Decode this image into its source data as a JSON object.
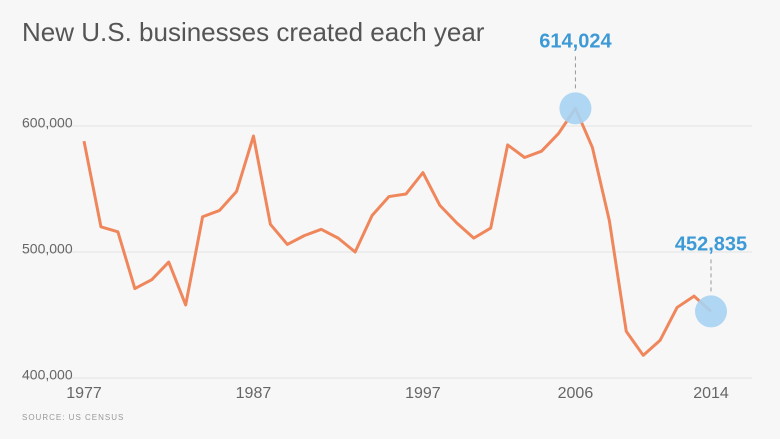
{
  "chart_data": {
    "type": "line",
    "title": "New U.S. businesses created each year",
    "source": "SOURCE: US CENSUS",
    "x": [
      1977,
      1978,
      1979,
      1980,
      1981,
      1982,
      1983,
      1984,
      1985,
      1986,
      1987,
      1988,
      1989,
      1990,
      1991,
      1992,
      1993,
      1994,
      1995,
      1996,
      1997,
      1998,
      1999,
      2000,
      2001,
      2002,
      2003,
      2004,
      2005,
      2006,
      2007,
      2008,
      2009,
      2010,
      2011,
      2012,
      2013,
      2014
    ],
    "series": [
      {
        "name": "New businesses",
        "color": "#f0875c",
        "values": [
          588000,
          520000,
          516000,
          471000,
          478000,
          492000,
          458000,
          528000,
          533000,
          548000,
          592000,
          522000,
          506000,
          513000,
          518000,
          511000,
          500000,
          529000,
          544000,
          546000,
          563000,
          537000,
          523000,
          511000,
          519000,
          585000,
          575000,
          580000,
          594000,
          614024,
          583000,
          525000,
          437000,
          418000,
          430000,
          456000,
          465000,
          452835
        ],
        "value_labels": [
          null,
          null,
          null,
          null,
          null,
          null,
          null,
          null,
          null,
          null,
          null,
          null,
          null,
          null,
          null,
          null,
          null,
          null,
          null,
          null,
          null,
          null,
          null,
          null,
          null,
          null,
          null,
          null,
          null,
          "614,024",
          null,
          null,
          null,
          null,
          null,
          null,
          null,
          "452,835"
        ]
      }
    ],
    "xlim": [
      1977,
      2014
    ],
    "xticks": [
      1977,
      1987,
      1997,
      2006,
      2014
    ],
    "ylim": [
      400000,
      620000
    ],
    "yticks": [
      {
        "value": 400000,
        "label": "400,000"
      },
      {
        "value": 500000,
        "label": "500,000"
      },
      {
        "value": 600000,
        "label": "600,000"
      }
    ],
    "grid": true
  }
}
